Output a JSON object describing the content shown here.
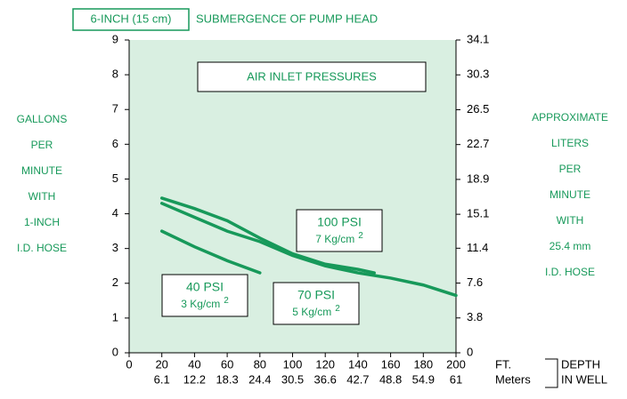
{
  "chart_data": {
    "type": "line",
    "header_box": "6-INCH (15 cm)",
    "title": "SUBMERGENCE OF PUMP HEAD",
    "subtitle": "AIR INLET PRESSURES",
    "ylabel": [
      "GALLONS",
      "PER",
      "MINUTE",
      "WITH",
      "1-INCH",
      "I.D. HOSE"
    ],
    "y2label": [
      "APPROXIMATE",
      "LITERS",
      "PER",
      "MINUTE",
      "WITH",
      "25.4 mm",
      "I.D. HOSE"
    ],
    "xlabel": "FT.",
    "x2label": "Meters",
    "depth_label": [
      "DEPTH",
      "IN WELL"
    ],
    "xlim": [
      0,
      200
    ],
    "xticks": [
      0,
      20,
      40,
      60,
      80,
      100,
      120,
      140,
      160,
      180,
      200
    ],
    "x2lim": [
      0,
      61
    ],
    "x2ticks": [
      6.1,
      12.2,
      18.3,
      24.4,
      30.5,
      36.6,
      42.7,
      48.8,
      54.9,
      61
    ],
    "ylim": [
      0,
      9
    ],
    "yticks": [
      0,
      1,
      2,
      3,
      4,
      5,
      6,
      7,
      8,
      9
    ],
    "y2lim": [
      0,
      34.1
    ],
    "y2ticks": [
      0,
      3.8,
      7.6,
      11.4,
      15.1,
      18.9,
      22.7,
      26.5,
      30.3,
      34.1
    ],
    "series": [
      {
        "name": "40 PSI",
        "metric": "3 Kg/cm",
        "metric_sup": "2",
        "color": "#17995a",
        "x": [
          20,
          40,
          60,
          80
        ],
        "values": [
          3.5,
          3.05,
          2.65,
          2.3
        ]
      },
      {
        "name": "70 PSI",
        "metric": "5 Kg/cm",
        "metric_sup": "2",
        "color": "#17995a",
        "x": [
          20,
          40,
          60,
          80,
          100,
          120,
          140,
          150
        ],
        "values": [
          4.45,
          4.15,
          3.8,
          3.3,
          2.85,
          2.55,
          2.4,
          2.3
        ]
      },
      {
        "name": "100 PSI",
        "metric": "7 Kg/cm",
        "metric_sup": "2",
        "color": "#17995a",
        "x": [
          20,
          40,
          60,
          80,
          100,
          120,
          140,
          160,
          180,
          200
        ],
        "values": [
          4.3,
          3.9,
          3.5,
          3.2,
          2.8,
          2.5,
          2.3,
          2.15,
          1.95,
          1.65
        ]
      }
    ]
  }
}
